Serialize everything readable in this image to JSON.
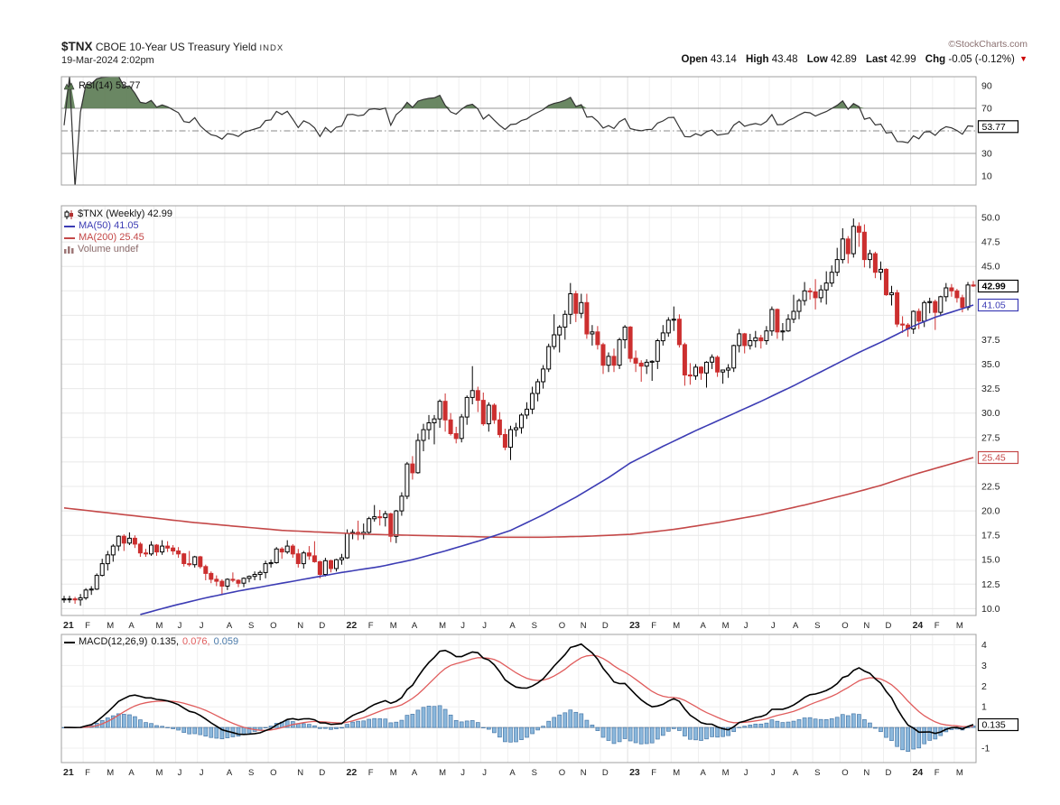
{
  "header": {
    "symbol": "$TNX",
    "name": "CBOE 10-Year US Treasury Yield",
    "exchange": "INDX",
    "datetime": "19-Mar-2024 2:02pm",
    "source": "©StockCharts.com",
    "quote": {
      "open_label": "Open",
      "open": "43.14",
      "high_label": "High",
      "high": "43.48",
      "low_label": "Low",
      "low": "42.89",
      "last_label": "Last",
      "last": "42.99",
      "chg_label": "Chg",
      "chg": "-0.05 (-0.12%)"
    }
  },
  "panels": {
    "rsi": {
      "legend": "RSI(14) 53.77",
      "current": 53.77,
      "yticks": [
        "90",
        "70",
        "30",
        "10"
      ],
      "upper_band": 70,
      "mid_band": 50,
      "lower_band": 30
    },
    "main": {
      "symbol_legend": "$TNX (Weekly) 42.99",
      "ma50_legend": "MA(50) 41.05",
      "ma200_legend": "MA(200) 25.45",
      "volume_legend": "Volume undef",
      "last": 42.99,
      "ma50": 41.05,
      "ma200": 25.45,
      "yticks": [
        "50.0",
        "47.5",
        "45.0",
        "37.5",
        "35.0",
        "32.5",
        "30.0",
        "27.5",
        "22.5",
        "20.0",
        "17.5",
        "15.0",
        "12.5",
        "10.0"
      ]
    },
    "macd": {
      "label": "MACD(12,26,9)",
      "v1": "0.135,",
      "v2": "0.076,",
      "v3": "0.059",
      "current": 0.135,
      "yticks": [
        "4",
        "3",
        "2",
        "1",
        "-1"
      ]
    }
  },
  "colors": {
    "up": "#000000",
    "up_fill": "#ffffff",
    "down": "#cc2f2f",
    "ma50": "#3c3cb4",
    "ma200": "#c44848",
    "macd_line": "#000000",
    "macd_signal": "#e05c5c",
    "hist_fill": "#8cb8dc",
    "hist_stroke": "#4878a8",
    "rsi_line": "#333333",
    "rsi_fill": "#5a7a52",
    "grid": "#e8e8e8",
    "border": "#a0a0a0",
    "accent_red": "#cc0000"
  },
  "chart_data": {
    "type": "candlestick",
    "title": "$TNX (Weekly) with RSI(14) and MACD(12,26,9)",
    "x_range": "Jan-2021 to Mar-2024, weekly bars",
    "price_ylim": [
      10,
      50
    ],
    "rsi_ylim": [
      10,
      90
    ],
    "macd_ylim": [
      -1,
      4
    ],
    "last_close": 42.99,
    "ma50_current": 41.05,
    "ma200_current": 25.45,
    "rsi_current": 53.77,
    "macd_current": 0.135,
    "macd_signal_current": 0.076,
    "macd_hist_current": 0.059,
    "month_ticks": [
      [
        0,
        "21",
        1
      ],
      [
        4,
        "F",
        0
      ],
      [
        8,
        "M",
        0
      ],
      [
        12,
        "A",
        0
      ],
      [
        17,
        "M",
        0
      ],
      [
        21,
        "J",
        0
      ],
      [
        25,
        "J",
        0
      ],
      [
        30,
        "A",
        0
      ],
      [
        34,
        "S",
        0
      ],
      [
        38,
        "O",
        0
      ],
      [
        43,
        "N",
        0
      ],
      [
        47,
        "D",
        0
      ],
      [
        52,
        "22",
        1
      ],
      [
        56,
        "F",
        0
      ],
      [
        60,
        "M",
        0
      ],
      [
        64,
        "A",
        0
      ],
      [
        69,
        "M",
        0
      ],
      [
        73,
        "J",
        0
      ],
      [
        77,
        "J",
        0
      ],
      [
        82,
        "A",
        0
      ],
      [
        86,
        "S",
        0
      ],
      [
        91,
        "O",
        0
      ],
      [
        95,
        "N",
        0
      ],
      [
        99,
        "D",
        0
      ],
      [
        104,
        "23",
        1
      ],
      [
        108,
        "F",
        0
      ],
      [
        112,
        "M",
        0
      ],
      [
        117,
        "A",
        0
      ],
      [
        121,
        "M",
        0
      ],
      [
        125,
        "J",
        0
      ],
      [
        130,
        "J",
        0
      ],
      [
        134,
        "A",
        0
      ],
      [
        138,
        "S",
        0
      ],
      [
        143,
        "O",
        0
      ],
      [
        147,
        "N",
        0
      ],
      [
        151,
        "D",
        0
      ],
      [
        156,
        "24",
        1
      ],
      [
        160,
        "F",
        0
      ],
      [
        164,
        "M",
        0
      ]
    ],
    "candles_ohlc": [
      [
        10.9,
        11.3,
        10.6,
        11.0
      ],
      [
        11.0,
        11.3,
        10.6,
        11.0
      ],
      [
        11.0,
        11.2,
        10.5,
        10.9
      ],
      [
        10.9,
        11.5,
        10.3,
        11.1
      ],
      [
        11.1,
        12.1,
        10.9,
        11.9
      ],
      [
        11.9,
        12.3,
        11.4,
        12.0
      ],
      [
        12.0,
        13.6,
        11.9,
        13.4
      ],
      [
        13.4,
        15.1,
        13.3,
        14.6
      ],
      [
        14.6,
        15.9,
        13.9,
        15.5
      ],
      [
        15.5,
        16.6,
        14.8,
        16.4
      ],
      [
        16.4,
        17.5,
        15.9,
        17.4
      ],
      [
        17.4,
        17.6,
        15.9,
        16.7
      ],
      [
        16.7,
        17.8,
        16.5,
        17.2
      ],
      [
        17.2,
        17.5,
        16.2,
        16.6
      ],
      [
        16.6,
        16.8,
        15.3,
        15.7
      ],
      [
        15.7,
        16.1,
        15.3,
        15.6
      ],
      [
        15.6,
        16.9,
        15.4,
        16.5
      ],
      [
        16.5,
        16.6,
        15.4,
        15.8
      ],
      [
        15.8,
        17.0,
        15.5,
        16.4
      ],
      [
        16.4,
        16.9,
        15.8,
        16.2
      ],
      [
        16.2,
        16.5,
        15.5,
        15.9
      ],
      [
        15.9,
        16.3,
        15.2,
        15.6
      ],
      [
        15.6,
        15.7,
        14.3,
        14.6
      ],
      [
        14.6,
        15.9,
        14.3,
        14.5
      ],
      [
        14.5,
        15.4,
        14.2,
        15.3
      ],
      [
        15.3,
        15.4,
        14.1,
        14.3
      ],
      [
        14.3,
        14.5,
        12.9,
        13.6
      ],
      [
        13.6,
        13.8,
        12.6,
        13.0
      ],
      [
        13.0,
        13.4,
        12.3,
        12.8
      ],
      [
        12.8,
        13.0,
        11.5,
        12.3
      ],
      [
        12.3,
        13.1,
        11.9,
        13.0
      ],
      [
        13.0,
        13.7,
        12.7,
        12.9
      ],
      [
        12.9,
        13.0,
        12.2,
        12.6
      ],
      [
        12.6,
        13.2,
        12.2,
        13.1
      ],
      [
        13.1,
        13.4,
        12.7,
        13.3
      ],
      [
        13.3,
        13.8,
        12.9,
        13.5
      ],
      [
        13.5,
        13.9,
        12.9,
        13.7
      ],
      [
        13.7,
        14.9,
        13.1,
        14.6
      ],
      [
        14.6,
        15.0,
        14.2,
        14.7
      ],
      [
        14.7,
        16.3,
        14.6,
        16.1
      ],
      [
        16.1,
        16.3,
        15.1,
        15.8
      ],
      [
        15.8,
        17.0,
        15.6,
        16.4
      ],
      [
        16.4,
        16.6,
        15.2,
        15.6
      ],
      [
        15.6,
        16.1,
        14.2,
        14.6
      ],
      [
        14.6,
        15.9,
        14.1,
        15.7
      ],
      [
        15.7,
        16.4,
        15.0,
        15.4
      ],
      [
        15.4,
        16.9,
        14.7,
        14.8
      ],
      [
        14.8,
        14.9,
        13.1,
        13.5
      ],
      [
        13.5,
        15.2,
        13.3,
        14.9
      ],
      [
        14.9,
        15.0,
        13.7,
        14.1
      ],
      [
        14.1,
        15.1,
        13.8,
        15.0
      ],
      [
        15.0,
        15.6,
        14.5,
        15.2
      ],
      [
        15.2,
        18.1,
        15.1,
        17.7
      ],
      [
        17.7,
        18.1,
        17.1,
        17.8
      ],
      [
        17.8,
        19.0,
        17.0,
        17.6
      ],
      [
        17.6,
        18.7,
        17.1,
        17.8
      ],
      [
        17.8,
        19.4,
        17.6,
        19.2
      ],
      [
        19.2,
        20.6,
        18.9,
        19.4
      ],
      [
        19.4,
        20.1,
        18.5,
        19.3
      ],
      [
        19.3,
        20.0,
        18.4,
        19.7
      ],
      [
        19.7,
        19.8,
        16.8,
        17.4
      ],
      [
        17.4,
        20.1,
        16.7,
        20.0
      ],
      [
        20.0,
        21.9,
        19.5,
        21.5
      ],
      [
        21.5,
        25.0,
        21.2,
        24.8
      ],
      [
        24.8,
        25.6,
        23.2,
        23.9
      ],
      [
        23.9,
        27.9,
        23.8,
        27.2
      ],
      [
        27.2,
        28.9,
        26.1,
        28.3
      ],
      [
        28.3,
        29.8,
        27.3,
        29.0
      ],
      [
        29.0,
        29.8,
        26.8,
        29.4
      ],
      [
        29.4,
        31.4,
        28.5,
        31.2
      ],
      [
        31.2,
        32.0,
        28.1,
        29.3
      ],
      [
        29.3,
        30.0,
        27.7,
        27.9
      ],
      [
        27.9,
        28.6,
        26.9,
        27.4
      ],
      [
        27.4,
        29.9,
        27.0,
        29.6
      ],
      [
        29.6,
        31.8,
        28.8,
        31.6
      ],
      [
        31.6,
        34.8,
        30.9,
        32.3
      ],
      [
        32.3,
        32.7,
        30.1,
        31.3
      ],
      [
        31.3,
        32.1,
        28.7,
        28.9
      ],
      [
        28.9,
        31.1,
        28.1,
        30.8
      ],
      [
        30.8,
        31.0,
        28.9,
        29.3
      ],
      [
        29.3,
        30.1,
        27.5,
        27.8
      ],
      [
        27.8,
        28.4,
        26.2,
        26.5
      ],
      [
        26.5,
        28.7,
        25.2,
        28.3
      ],
      [
        28.3,
        29.0,
        27.6,
        28.5
      ],
      [
        28.5,
        30.0,
        27.9,
        29.8
      ],
      [
        29.8,
        31.1,
        29.4,
        30.4
      ],
      [
        30.4,
        32.7,
        29.9,
        32.0
      ],
      [
        32.0,
        33.5,
        31.2,
        33.2
      ],
      [
        33.2,
        34.9,
        32.5,
        34.5
      ],
      [
        34.5,
        37.1,
        34.2,
        36.8
      ],
      [
        36.8,
        40.1,
        36.5,
        38.0
      ],
      [
        38.0,
        39.0,
        36.2,
        38.8
      ],
      [
        38.8,
        40.5,
        37.5,
        40.1
      ],
      [
        40.1,
        43.3,
        39.1,
        42.2
      ],
      [
        42.2,
        42.5,
        39.3,
        40.2
      ],
      [
        40.2,
        42.2,
        39.7,
        41.3
      ],
      [
        41.3,
        42.2,
        37.6,
        38.1
      ],
      [
        38.1,
        39.0,
        36.9,
        38.3
      ],
      [
        38.3,
        38.9,
        36.5,
        37.0
      ],
      [
        37.0,
        37.2,
        34.0,
        34.9
      ],
      [
        34.9,
        36.2,
        34.2,
        35.8
      ],
      [
        35.8,
        36.6,
        34.2,
        34.9
      ],
      [
        34.9,
        37.7,
        34.5,
        37.5
      ],
      [
        37.5,
        39.0,
        36.6,
        38.8
      ],
      [
        38.8,
        38.9,
        35.2,
        35.6
      ],
      [
        35.6,
        36.4,
        34.2,
        35.1
      ],
      [
        35.1,
        35.4,
        33.2,
        34.8
      ],
      [
        34.8,
        35.5,
        34.0,
        35.2
      ],
      [
        35.2,
        35.4,
        33.3,
        35.3
      ],
      [
        35.3,
        37.6,
        34.5,
        37.4
      ],
      [
        37.4,
        39.0,
        36.9,
        38.2
      ],
      [
        38.2,
        39.8,
        37.8,
        39.5
      ],
      [
        39.5,
        40.9,
        38.4,
        39.6
      ],
      [
        39.6,
        40.1,
        36.7,
        37.0
      ],
      [
        37.0,
        37.2,
        32.8,
        33.9
      ],
      [
        33.9,
        35.1,
        32.9,
        33.8
      ],
      [
        33.8,
        35.0,
        33.4,
        34.7
      ],
      [
        34.7,
        34.8,
        33.4,
        34.1
      ],
      [
        34.1,
        35.3,
        32.6,
        35.2
      ],
      [
        35.2,
        36.0,
        34.5,
        35.7
      ],
      [
        35.7,
        35.9,
        33.7,
        34.2
      ],
      [
        34.2,
        34.4,
        33.0,
        34.4
      ],
      [
        34.4,
        35.0,
        33.6,
        34.6
      ],
      [
        34.6,
        37.0,
        34.2,
        36.9
      ],
      [
        36.9,
        38.6,
        36.2,
        38.1
      ],
      [
        38.1,
        38.2,
        36.1,
        36.9
      ],
      [
        36.9,
        38.1,
        36.5,
        37.4
      ],
      [
        37.4,
        38.4,
        36.7,
        37.7
      ],
      [
        37.7,
        38.0,
        36.6,
        37.4
      ],
      [
        37.4,
        38.9,
        37.0,
        38.4
      ],
      [
        38.4,
        40.9,
        37.9,
        40.6
      ],
      [
        40.6,
        40.7,
        37.6,
        38.3
      ],
      [
        38.3,
        39.2,
        37.4,
        38.4
      ],
      [
        38.4,
        40.1,
        38.3,
        39.6
      ],
      [
        39.6,
        42.1,
        39.2,
        40.4
      ],
      [
        40.4,
        41.7,
        39.6,
        41.5
      ],
      [
        41.5,
        43.4,
        41.0,
        42.5
      ],
      [
        42.5,
        42.8,
        41.6,
        42.4
      ],
      [
        42.4,
        43.7,
        40.6,
        41.8
      ],
      [
        41.8,
        43.1,
        41.3,
        42.6
      ],
      [
        42.6,
        44.5,
        41.1,
        43.3
      ],
      [
        43.3,
        45.1,
        42.9,
        44.4
      ],
      [
        44.4,
        46.9,
        44.0,
        45.7
      ],
      [
        45.7,
        48.9,
        45.3,
        47.8
      ],
      [
        47.8,
        48.1,
        45.3,
        46.3
      ],
      [
        46.3,
        49.9,
        45.9,
        49.1
      ],
      [
        49.1,
        49.5,
        47.0,
        48.5
      ],
      [
        48.5,
        49.3,
        44.9,
        45.7
      ],
      [
        45.7,
        46.7,
        44.8,
        46.3
      ],
      [
        46.3,
        46.5,
        43.8,
        44.4
      ],
      [
        44.4,
        45.5,
        43.6,
        44.7
      ],
      [
        44.7,
        44.8,
        42.0,
        42.1
      ],
      [
        42.1,
        43.0,
        41.0,
        42.3
      ],
      [
        42.3,
        42.6,
        38.8,
        39.1
      ],
      [
        39.1,
        39.9,
        38.2,
        39.0
      ],
      [
        39.0,
        39.2,
        37.8,
        38.6
      ],
      [
        38.6,
        40.5,
        38.1,
        40.4
      ],
      [
        40.4,
        40.7,
        38.6,
        39.4
      ],
      [
        39.4,
        41.5,
        38.8,
        41.3
      ],
      [
        41.3,
        41.8,
        40.2,
        41.4
      ],
      [
        41.4,
        41.6,
        38.5,
        40.3
      ],
      [
        40.3,
        42.0,
        39.9,
        41.9
      ],
      [
        41.9,
        43.3,
        41.4,
        42.8
      ],
      [
        42.8,
        43.2,
        41.9,
        42.5
      ],
      [
        42.5,
        42.7,
        41.3,
        41.8
      ],
      [
        41.8,
        42.1,
        40.3,
        40.8
      ],
      [
        40.8,
        43.4,
        40.5,
        43.1
      ],
      [
        43.1,
        43.5,
        42.9,
        43.0
      ]
    ],
    "ma50_anchors": [
      [
        14,
        9.4
      ],
      [
        20,
        10.3
      ],
      [
        26,
        11.1
      ],
      [
        32,
        11.8
      ],
      [
        38,
        12.4
      ],
      [
        44,
        13.0
      ],
      [
        51,
        13.7
      ],
      [
        58,
        14.3
      ],
      [
        64,
        15.0
      ],
      [
        70,
        15.9
      ],
      [
        76,
        16.9
      ],
      [
        82,
        18.0
      ],
      [
        88,
        19.6
      ],
      [
        94,
        21.4
      ],
      [
        100,
        23.4
      ],
      [
        104,
        24.9
      ],
      [
        110,
        26.6
      ],
      [
        116,
        28.2
      ],
      [
        122,
        29.7
      ],
      [
        128,
        31.2
      ],
      [
        134,
        32.8
      ],
      [
        140,
        34.5
      ],
      [
        146,
        36.2
      ],
      [
        151,
        37.5
      ],
      [
        156,
        38.9
      ],
      [
        160,
        39.8
      ],
      [
        164,
        40.5
      ],
      [
        167,
        41.05
      ]
    ],
    "ma200_anchors": [
      [
        0,
        20.3
      ],
      [
        8,
        19.8
      ],
      [
        16,
        19.3
      ],
      [
        24,
        18.8
      ],
      [
        32,
        18.4
      ],
      [
        40,
        18.0
      ],
      [
        48,
        17.8
      ],
      [
        56,
        17.6
      ],
      [
        64,
        17.5
      ],
      [
        72,
        17.4
      ],
      [
        80,
        17.3
      ],
      [
        88,
        17.3
      ],
      [
        96,
        17.4
      ],
      [
        104,
        17.6
      ],
      [
        112,
        18.1
      ],
      [
        120,
        18.8
      ],
      [
        128,
        19.6
      ],
      [
        136,
        20.6
      ],
      [
        144,
        21.7
      ],
      [
        150,
        22.6
      ],
      [
        156,
        23.7
      ],
      [
        161,
        24.5
      ],
      [
        167,
        25.45
      ]
    ],
    "rsi": {
      "period": 14,
      "overbought": 70,
      "oversold": 30
    },
    "macd": {
      "fast": 12,
      "slow": 26,
      "signal": 9
    }
  }
}
